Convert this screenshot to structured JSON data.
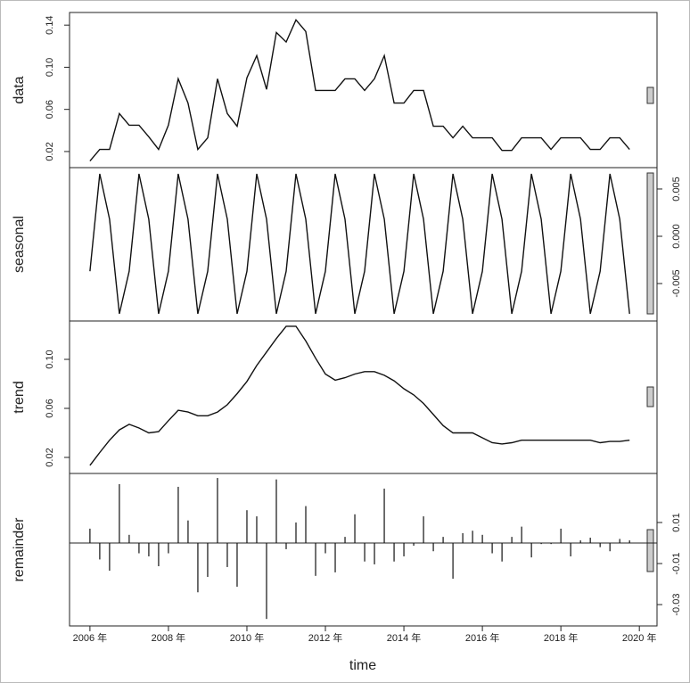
{
  "chart_data": {
    "type": "stl",
    "xlabel": "time",
    "x": [
      2006,
      2006.25,
      2006.5,
      2006.75,
      2007,
      2007.25,
      2007.5,
      2007.75,
      2008,
      2008.25,
      2008.5,
      2008.75,
      2009,
      2009.25,
      2009.5,
      2009.75,
      2010,
      2010.25,
      2010.5,
      2010.75,
      2011,
      2011.25,
      2011.5,
      2011.75,
      2012,
      2012.25,
      2012.5,
      2012.75,
      2013,
      2013.25,
      2013.5,
      2013.75,
      2014,
      2014.25,
      2014.5,
      2014.75,
      2015,
      2015.25,
      2015.5,
      2015.75,
      2016,
      2016.25,
      2016.5,
      2016.75,
      2017,
      2017.25,
      2017.5,
      2017.75,
      2018,
      2018.25,
      2018.5,
      2018.75,
      2019,
      2019.25,
      2019.5,
      2019.75
    ],
    "xlim": [
      2005.48,
      2020.45
    ],
    "xticks": [
      {
        "value": 2006,
        "label": "2006 年"
      },
      {
        "value": 2008,
        "label": "2008 年"
      },
      {
        "value": 2010,
        "label": "2010 年"
      },
      {
        "value": 2012,
        "label": "2012 年"
      },
      {
        "value": 2014,
        "label": "2014 年"
      },
      {
        "value": 2016,
        "label": "2016 年"
      },
      {
        "value": 2018,
        "label": "2018 年"
      },
      {
        "value": 2020,
        "label": "2020 年"
      }
    ],
    "panels": [
      {
        "type": "line",
        "ylabel": "data",
        "axis_side": "left",
        "color": "#111111",
        "ylim": [
          0.0047,
          0.152
        ],
        "yticks": [
          0.02,
          0.06,
          {
            "value": 0.1,
            "label": "0.10"
          },
          0.14
        ],
        "values": [
          0.011,
          0.022,
          0.022,
          0.056,
          0.045,
          0.045,
          0.034,
          0.022,
          0.045,
          0.089,
          0.066,
          0.022,
          0.033,
          0.089,
          0.056,
          0.044,
          0.09,
          0.111,
          0.079,
          0.133,
          0.124,
          0.145,
          0.134,
          0.078,
          0.078,
          0.078,
          0.089,
          0.089,
          0.078,
          0.089,
          0.111,
          0.066,
          0.066,
          0.078,
          0.078,
          0.044,
          0.044,
          0.033,
          0.044,
          0.033,
          0.033,
          0.033,
          0.021,
          0.021,
          0.033,
          0.033,
          0.033,
          0.022,
          0.033,
          0.033,
          0.033,
          0.022,
          0.022,
          0.033,
          0.033,
          0.022
        ]
      },
      {
        "type": "line",
        "ylabel": "seasonal",
        "axis_side": "right",
        "color": "#111111",
        "ylim": [
          -0.00896,
          0.00726
        ],
        "yticks": [
          -0.005,
          {
            "value": 0,
            "label": "0.000"
          },
          0.005
        ],
        "values": [
          -0.0037,
          0.0066,
          0.0018,
          -0.0082,
          -0.0037,
          0.0066,
          0.0018,
          -0.0082,
          -0.0037,
          0.0066,
          0.0018,
          -0.0082,
          -0.0037,
          0.0066,
          0.0018,
          -0.0082,
          -0.0037,
          0.0066,
          0.0018,
          -0.0082,
          -0.0037,
          0.0066,
          0.0018,
          -0.0082,
          -0.0037,
          0.0066,
          0.0018,
          -0.0082,
          -0.0037,
          0.0066,
          0.0018,
          -0.0082,
          -0.0037,
          0.0066,
          0.0018,
          -0.0082,
          -0.0037,
          0.0066,
          0.0018,
          -0.0082,
          -0.0037,
          0.0066,
          0.0018,
          -0.0082,
          -0.0037,
          0.0066,
          0.0018,
          -0.0082,
          -0.0037,
          0.0066,
          0.0018,
          -0.0082,
          -0.0037,
          0.0066,
          0.0018,
          -0.0082
        ]
      },
      {
        "type": "line",
        "ylabel": "trend",
        "axis_side": "left",
        "color": "#111111",
        "ylim": [
          0.0069,
          0.1313
        ],
        "yticks": [
          0.02,
          0.06,
          {
            "value": 0.1,
            "label": "0.10"
          }
        ],
        "values": [
          0.0135,
          0.024,
          0.034,
          0.0425,
          0.047,
          0.044,
          0.04,
          0.041,
          0.05,
          0.0585,
          0.057,
          0.054,
          0.054,
          0.057,
          0.063,
          0.072,
          0.082,
          0.095,
          0.106,
          0.117,
          0.127,
          0.127,
          0.115,
          0.101,
          0.088,
          0.083,
          0.085,
          0.088,
          0.09,
          0.09,
          0.087,
          0.0825,
          0.076,
          0.071,
          0.064,
          0.055,
          0.046,
          0.04,
          0.04,
          0.04,
          0.036,
          0.032,
          0.031,
          0.032,
          0.034,
          0.034,
          0.034,
          0.034,
          0.034,
          0.034,
          0.034,
          0.034,
          0.032,
          0.033,
          0.033,
          0.034
        ]
      },
      {
        "type": "bar",
        "ylabel": "remainder",
        "axis_side": "right",
        "color": "#111111",
        "ylim": [
          -0.0404,
          0.0339
        ],
        "yticks": [
          -0.03,
          -0.01,
          0.01
        ],
        "values": [
          0.007,
          -0.008,
          -0.0135,
          0.0287,
          0.004,
          -0.005,
          -0.0065,
          -0.0113,
          -0.005,
          0.0274,
          0.011,
          -0.024,
          -0.0165,
          0.0317,
          -0.0117,
          -0.0213,
          0.016,
          0.013,
          -0.037,
          0.031,
          -0.003,
          0.01,
          0.018,
          -0.016,
          -0.005,
          -0.0143,
          0.003,
          0.014,
          -0.009,
          -0.0104,
          0.0265,
          -0.009,
          -0.0065,
          -0.0013,
          0.013,
          -0.004,
          0.003,
          -0.0174,
          0.0048,
          0.006,
          0.004,
          -0.005,
          -0.009,
          0.003,
          0.008,
          -0.007,
          -0.0005,
          -0.0005,
          0.007,
          -0.0065,
          0.0013,
          0.0026,
          -0.002,
          -0.004,
          0.002,
          0.0013
        ]
      }
    ]
  }
}
